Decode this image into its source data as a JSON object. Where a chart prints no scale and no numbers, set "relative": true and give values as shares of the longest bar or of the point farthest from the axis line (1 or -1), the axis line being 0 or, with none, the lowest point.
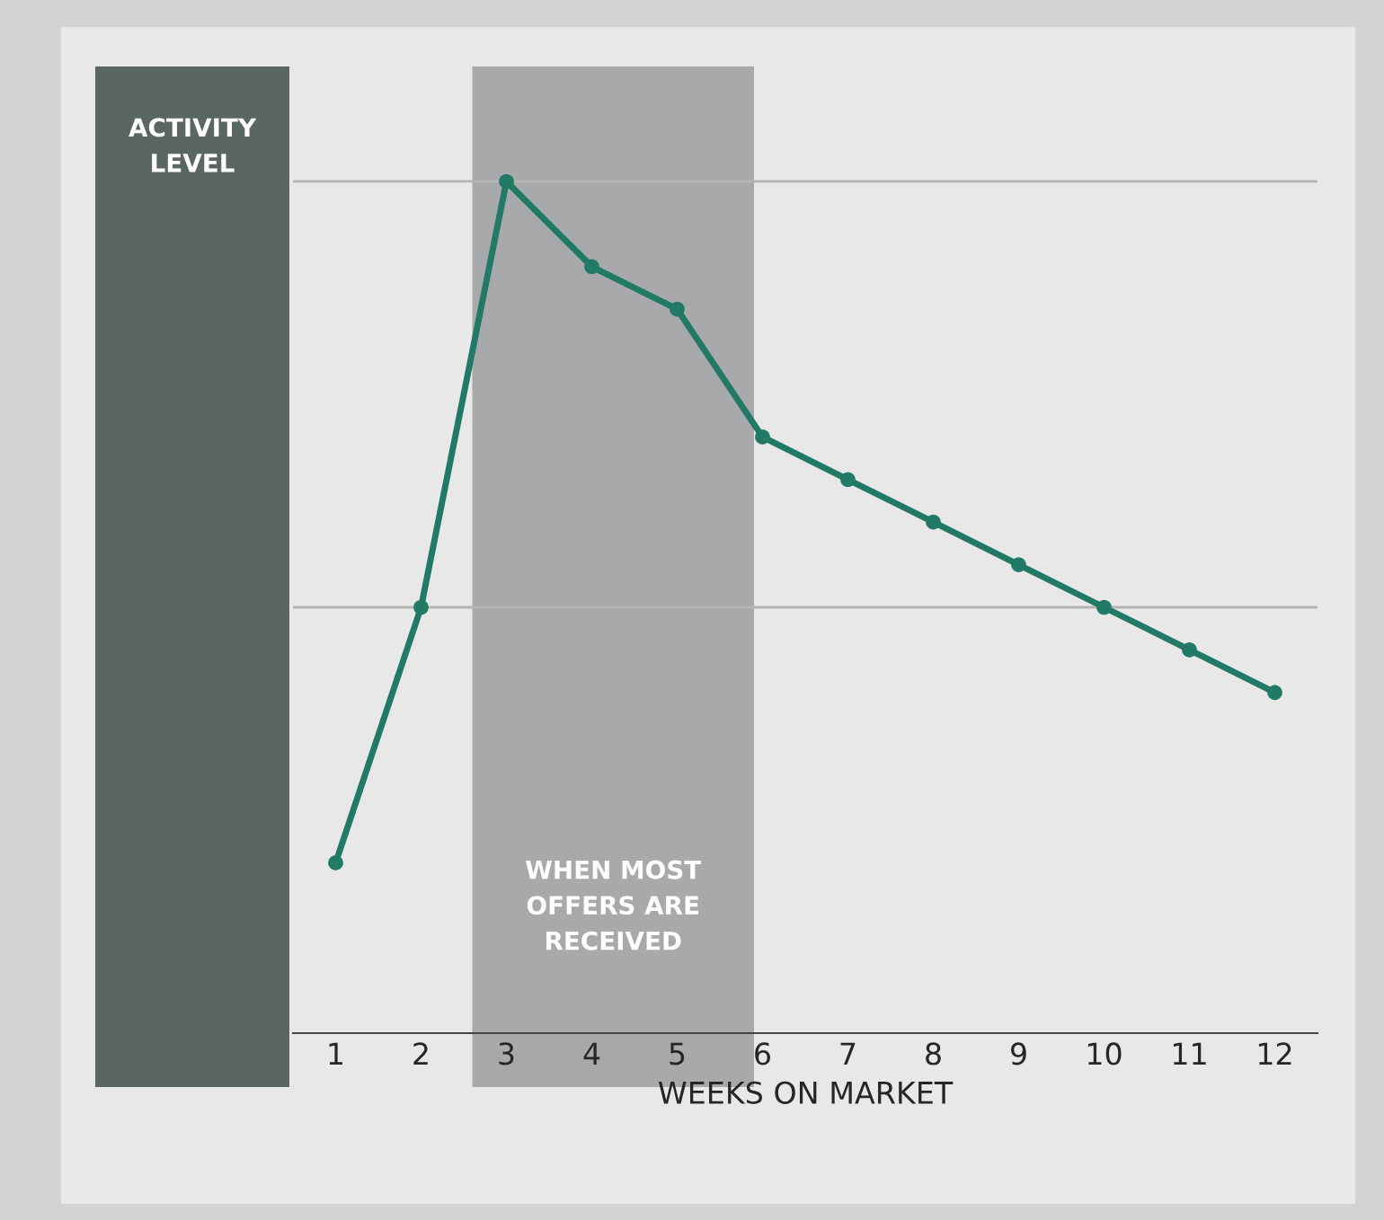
{
  "chart_data": {
    "type": "line",
    "relative": true,
    "xlabel": "WEEKS ON MARKET",
    "ylabel": "ACTIVITY LEVEL",
    "x": [
      1,
      2,
      3,
      4,
      5,
      6,
      7,
      8,
      9,
      10,
      11,
      12
    ],
    "series": [
      {
        "color": "#217a66",
        "values": [
          0.2,
          0.5,
          1.0,
          0.9,
          0.85,
          0.7,
          0.65,
          0.6,
          0.55,
          0.5,
          0.45,
          0.4
        ]
      }
    ],
    "xlim": [
      0.5,
      12.5
    ],
    "xticks": [
      1,
      2,
      3,
      4,
      5,
      6,
      7,
      8,
      9,
      10,
      11,
      12
    ],
    "tick_labels": "x",
    "marker": "circle",
    "line_style": "solid",
    "grid": false,
    "legend": false,
    "ref_lines": [
      {
        "axis": "y",
        "value": 0.5,
        "color": "#b4b4b4"
      },
      {
        "axis": "y",
        "value": 1.0,
        "color": "#b4b4b4"
      }
    ],
    "bands": [
      {
        "axis": "x",
        "from": 2.6,
        "to": 5.9,
        "label": "WHEN MOST OFFERS ARE RECEIVED",
        "color": "#a8a9ab"
      }
    ]
  }
}
